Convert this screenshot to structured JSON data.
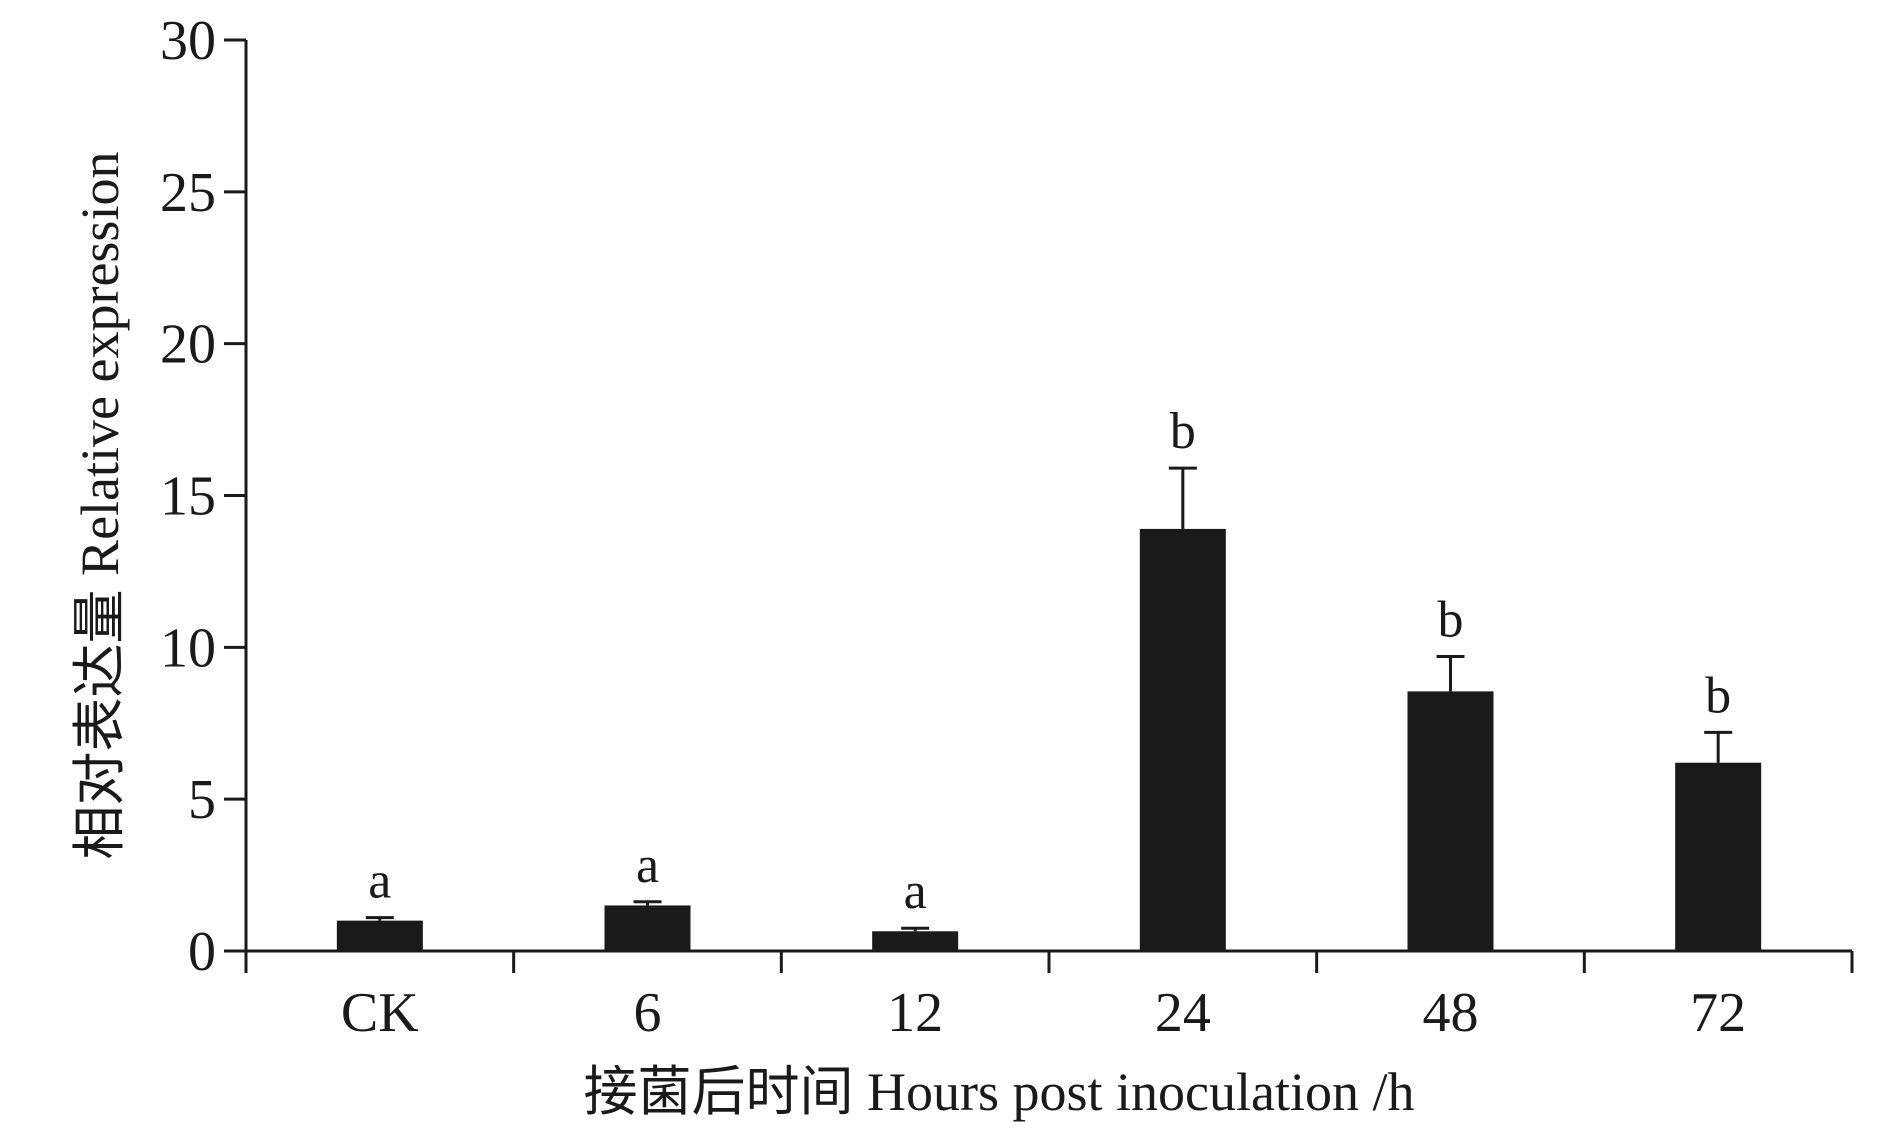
{
  "chart_data": {
    "type": "bar",
    "categories": [
      "CK",
      "6",
      "12",
      "24",
      "48",
      "72"
    ],
    "values": [
      1.0,
      1.5,
      0.65,
      13.9,
      8.55,
      6.2
    ],
    "error": [
      0.1,
      0.12,
      0.1,
      2.0,
      1.15,
      1.0
    ],
    "significance": [
      "a",
      "a",
      "a",
      "b",
      "b",
      "b"
    ],
    "xlabel": "接菌后时间  Hours post inoculation /h",
    "ylabel": "相对表达量 Relative expression",
    "ylim": [
      0,
      30
    ],
    "yticks": [
      0,
      5,
      10,
      15,
      20,
      25,
      30
    ],
    "grid": false,
    "bar_color": "#1a1a1a"
  }
}
